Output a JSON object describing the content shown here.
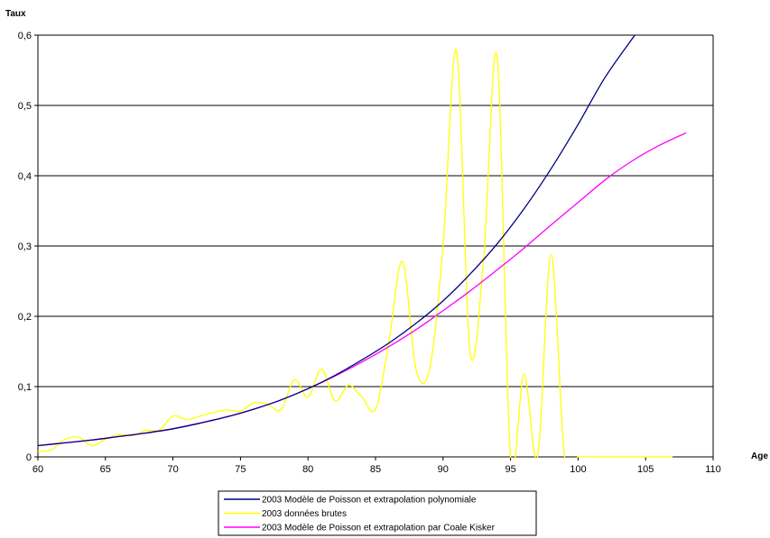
{
  "chart_data": {
    "type": "line",
    "ylabel": "Taux",
    "xlabel": "Age",
    "xlim": [
      60,
      110
    ],
    "ylim": [
      0,
      0.6
    ],
    "x_ticks": [
      60,
      65,
      70,
      75,
      80,
      85,
      90,
      95,
      100,
      105,
      110
    ],
    "x_tick_labels": [
      "60",
      "65",
      "70",
      "75",
      "80",
      "85",
      "90",
      "95",
      "100",
      "105",
      "110"
    ],
    "y_ticks": [
      0,
      0.1,
      0.2,
      0.3,
      0.4,
      0.5,
      0.6
    ],
    "y_tick_labels": [
      "0",
      "0,1",
      "0,2",
      "0,3",
      "0,4",
      "0,5",
      "0,6"
    ],
    "grid": "horizontal",
    "legend_position": "bottom",
    "series": [
      {
        "name": "2003 Modèle de Poisson et extrapolation polynomiale",
        "color": "#000080",
        "x": [
          60,
          62,
          64,
          66,
          68,
          70,
          72,
          74,
          76,
          78,
          80,
          82,
          84,
          86,
          88,
          90,
          92,
          94,
          96,
          98,
          100,
          102,
          104.2
        ],
        "y": [
          0.016,
          0.02,
          0.024,
          0.029,
          0.034,
          0.04,
          0.048,
          0.057,
          0.068,
          0.081,
          0.097,
          0.116,
          0.138,
          0.162,
          0.19,
          0.222,
          0.26,
          0.303,
          0.353,
          0.41,
          0.473,
          0.54,
          0.6
        ]
      },
      {
        "name": "2003 données brutes",
        "color": "#ffff00",
        "x": [
          60,
          61,
          62,
          63,
          64,
          65,
          66,
          67,
          68,
          69,
          70,
          71,
          72,
          73,
          74,
          75,
          76,
          77,
          78,
          79,
          80,
          81,
          82,
          83,
          84,
          85,
          86,
          87,
          88,
          89,
          90,
          91,
          92,
          93,
          94,
          95,
          96,
          97,
          98,
          99,
          100,
          101,
          102,
          103,
          104,
          105,
          106,
          107
        ],
        "y": [
          0.008,
          0.01,
          0.025,
          0.028,
          0.016,
          0.025,
          0.032,
          0.03,
          0.038,
          0.038,
          0.058,
          0.053,
          0.058,
          0.063,
          0.067,
          0.065,
          0.077,
          0.075,
          0.067,
          0.11,
          0.085,
          0.125,
          0.08,
          0.102,
          0.085,
          0.068,
          0.165,
          0.278,
          0.125,
          0.125,
          0.3,
          0.578,
          0.15,
          0.28,
          0.57,
          0.0,
          0.118,
          0.0,
          0.288,
          0.0,
          0.0,
          0.0,
          0.0,
          0.0,
          0.0,
          0.0,
          0.0,
          0.0
        ]
      },
      {
        "name": "2003 Modèle de Poisson et extrapolation par Coale Kisker",
        "color": "#ff00ff",
        "x": [
          60,
          62,
          64,
          66,
          68,
          70,
          72,
          74,
          76,
          78,
          80,
          82,
          84,
          86,
          88,
          90,
          92,
          94,
          96,
          98,
          100,
          102,
          104,
          106,
          108
        ],
        "y": [
          0.016,
          0.02,
          0.024,
          0.029,
          0.034,
          0.04,
          0.048,
          0.057,
          0.068,
          0.081,
          0.097,
          0.115,
          0.135,
          0.157,
          0.181,
          0.208,
          0.236,
          0.266,
          0.297,
          0.33,
          0.362,
          0.394,
          0.421,
          0.443,
          0.461
        ]
      }
    ]
  }
}
